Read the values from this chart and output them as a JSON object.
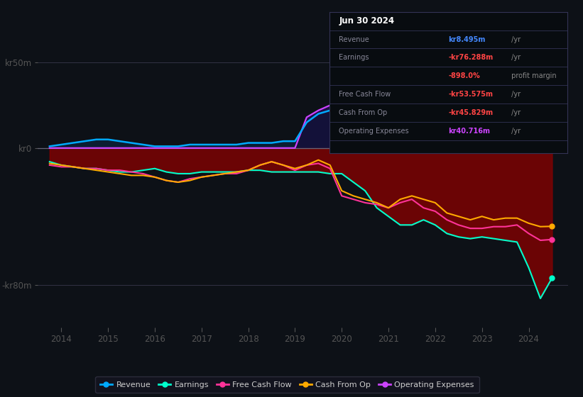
{
  "bg_color": "#0d1117",
  "ylim": [
    -105,
    68
  ],
  "xlim": [
    2013.5,
    2024.85
  ],
  "x_ticks": [
    2014,
    2015,
    2016,
    2017,
    2018,
    2019,
    2020,
    2021,
    2022,
    2023,
    2024
  ],
  "y_ticks": [
    50,
    0,
    -80
  ],
  "y_tick_labels": [
    "kr50m",
    "kr0",
    "-kr80m"
  ],
  "revenue_color": "#00aaff",
  "earnings_color": "#00ffcc",
  "fcf_color": "#ff3399",
  "cfo_color": "#ffaa00",
  "opex_color": "#cc44ff",
  "revenue_x": [
    2013.75,
    2014.0,
    2014.25,
    2014.5,
    2014.75,
    2015.0,
    2015.25,
    2015.5,
    2015.75,
    2016.0,
    2016.25,
    2016.5,
    2016.75,
    2017.0,
    2017.25,
    2017.5,
    2017.75,
    2018.0,
    2018.25,
    2018.5,
    2018.75,
    2019.0,
    2019.25,
    2019.5,
    2019.75,
    2020.0,
    2020.25,
    2020.5,
    2020.75,
    2021.0,
    2021.25,
    2021.5,
    2021.75,
    2022.0,
    2022.25,
    2022.5,
    2022.75,
    2023.0,
    2023.25,
    2023.5,
    2023.75,
    2024.0,
    2024.25,
    2024.5
  ],
  "revenue_y": [
    1,
    2,
    3,
    4,
    5,
    5,
    4,
    3,
    2,
    1,
    1,
    1,
    2,
    2,
    2,
    2,
    2,
    3,
    3,
    3,
    4,
    4,
    15,
    20,
    22,
    25,
    27,
    26,
    24,
    26,
    28,
    30,
    27,
    25,
    23,
    22,
    20,
    15,
    13,
    12,
    11,
    10,
    9,
    8.5
  ],
  "earnings_x": [
    2013.75,
    2014.0,
    2014.25,
    2014.5,
    2014.75,
    2015.0,
    2015.25,
    2015.5,
    2015.75,
    2016.0,
    2016.25,
    2016.5,
    2016.75,
    2017.0,
    2017.25,
    2017.5,
    2017.75,
    2018.0,
    2018.25,
    2018.5,
    2018.75,
    2019.0,
    2019.25,
    2019.5,
    2019.75,
    2020.0,
    2020.25,
    2020.5,
    2020.75,
    2021.0,
    2021.25,
    2021.5,
    2021.75,
    2022.0,
    2022.25,
    2022.5,
    2022.75,
    2023.0,
    2023.25,
    2023.5,
    2023.75,
    2024.0,
    2024.25,
    2024.5
  ],
  "earnings_y": [
    -8,
    -10,
    -11,
    -12,
    -12,
    -13,
    -14,
    -14,
    -13,
    -12,
    -14,
    -15,
    -15,
    -14,
    -14,
    -14,
    -14,
    -13,
    -13,
    -14,
    -14,
    -14,
    -14,
    -14,
    -15,
    -15,
    -20,
    -25,
    -35,
    -40,
    -45,
    -45,
    -42,
    -45,
    -50,
    -52,
    -53,
    -52,
    -53,
    -54,
    -55,
    -70,
    -88,
    -76
  ],
  "fcf_x": [
    2013.75,
    2014.0,
    2014.25,
    2014.5,
    2014.75,
    2015.0,
    2015.25,
    2015.5,
    2015.75,
    2016.0,
    2016.25,
    2016.5,
    2016.75,
    2017.0,
    2017.25,
    2017.5,
    2017.75,
    2018.0,
    2018.25,
    2018.5,
    2018.75,
    2019.0,
    2019.25,
    2019.5,
    2019.75,
    2020.0,
    2020.25,
    2020.5,
    2020.75,
    2021.0,
    2021.25,
    2021.5,
    2021.75,
    2022.0,
    2022.25,
    2022.5,
    2022.75,
    2023.0,
    2023.25,
    2023.5,
    2023.75,
    2024.0,
    2024.25,
    2024.5
  ],
  "fcf_y": [
    -10,
    -11,
    -11,
    -12,
    -12,
    -13,
    -13,
    -14,
    -15,
    -17,
    -19,
    -20,
    -18,
    -17,
    -16,
    -15,
    -15,
    -13,
    -10,
    -8,
    -10,
    -13,
    -10,
    -9,
    -12,
    -28,
    -30,
    -32,
    -33,
    -35,
    -32,
    -30,
    -35,
    -37,
    -42,
    -45,
    -47,
    -47,
    -46,
    -46,
    -45,
    -50,
    -54,
    -53.5
  ],
  "cfo_x": [
    2013.75,
    2014.0,
    2014.25,
    2014.5,
    2014.75,
    2015.0,
    2015.25,
    2015.5,
    2015.75,
    2016.0,
    2016.25,
    2016.5,
    2016.75,
    2017.0,
    2017.25,
    2017.5,
    2017.75,
    2018.0,
    2018.25,
    2018.5,
    2018.75,
    2019.0,
    2019.25,
    2019.5,
    2019.75,
    2020.0,
    2020.25,
    2020.5,
    2020.75,
    2021.0,
    2021.25,
    2021.5,
    2021.75,
    2022.0,
    2022.25,
    2022.5,
    2022.75,
    2023.0,
    2023.25,
    2023.5,
    2023.75,
    2024.0,
    2024.25,
    2024.5
  ],
  "cfo_y": [
    -9,
    -10,
    -11,
    -12,
    -13,
    -14,
    -15,
    -16,
    -16,
    -17,
    -19,
    -20,
    -19,
    -17,
    -16,
    -15,
    -14,
    -13,
    -10,
    -8,
    -10,
    -12,
    -10,
    -7,
    -10,
    -25,
    -28,
    -30,
    -32,
    -35,
    -30,
    -28,
    -30,
    -32,
    -38,
    -40,
    -42,
    -40,
    -42,
    -41,
    -41,
    -44,
    -46,
    -45.8
  ],
  "opex_x": [
    2013.75,
    2014.0,
    2014.25,
    2014.5,
    2014.75,
    2015.0,
    2015.25,
    2015.5,
    2015.75,
    2016.0,
    2016.25,
    2016.5,
    2016.75,
    2017.0,
    2017.25,
    2017.5,
    2017.75,
    2018.0,
    2018.25,
    2018.5,
    2018.75,
    2019.0,
    2019.25,
    2019.5,
    2019.75,
    2020.0,
    2020.25,
    2020.5,
    2020.75,
    2021.0,
    2021.25,
    2021.5,
    2021.75,
    2022.0,
    2022.25,
    2022.5,
    2022.75,
    2023.0,
    2023.25,
    2023.5,
    2023.75,
    2024.0,
    2024.25,
    2024.5
  ],
  "opex_y": [
    0,
    0,
    0,
    0,
    0,
    0,
    0,
    0,
    0,
    0,
    0,
    0,
    0,
    0,
    0,
    0,
    0,
    0,
    0,
    0,
    0,
    0,
    18,
    22,
    25,
    28,
    30,
    32,
    32,
    35,
    38,
    40,
    42,
    44,
    46,
    48,
    48,
    46,
    45,
    44,
    43,
    42,
    41,
    40.7
  ],
  "legend": [
    {
      "label": "Revenue",
      "color": "#00aaff"
    },
    {
      "label": "Earnings",
      "color": "#00ffcc"
    },
    {
      "label": "Free Cash Flow",
      "color": "#ff3399"
    },
    {
      "label": "Cash From Op",
      "color": "#ffaa00"
    },
    {
      "label": "Operating Expenses",
      "color": "#cc44ff"
    }
  ],
  "info_title": "Jun 30 2024",
  "info_rows": [
    {
      "label": "Revenue",
      "value": "kr8.495m",
      "suffix": " /yr",
      "val_color": "#4488ff",
      "suffix_color": "#888888"
    },
    {
      "label": "Earnings",
      "value": "-kr76.288m",
      "suffix": " /yr",
      "val_color": "#ff4444",
      "suffix_color": "#888888"
    },
    {
      "label": "",
      "value": "-898.0%",
      "suffix": " profit margin",
      "val_color": "#ff4444",
      "suffix_color": "#888888"
    },
    {
      "label": "Free Cash Flow",
      "value": "-kr53.575m",
      "suffix": " /yr",
      "val_color": "#ff4444",
      "suffix_color": "#888888"
    },
    {
      "label": "Cash From Op",
      "value": "-kr45.829m",
      "suffix": " /yr",
      "val_color": "#ff4444",
      "suffix_color": "#888888"
    },
    {
      "label": "Operating Expenses",
      "value": "kr40.716m",
      "suffix": " /yr",
      "val_color": "#cc44ff",
      "suffix_color": "#888888"
    }
  ]
}
